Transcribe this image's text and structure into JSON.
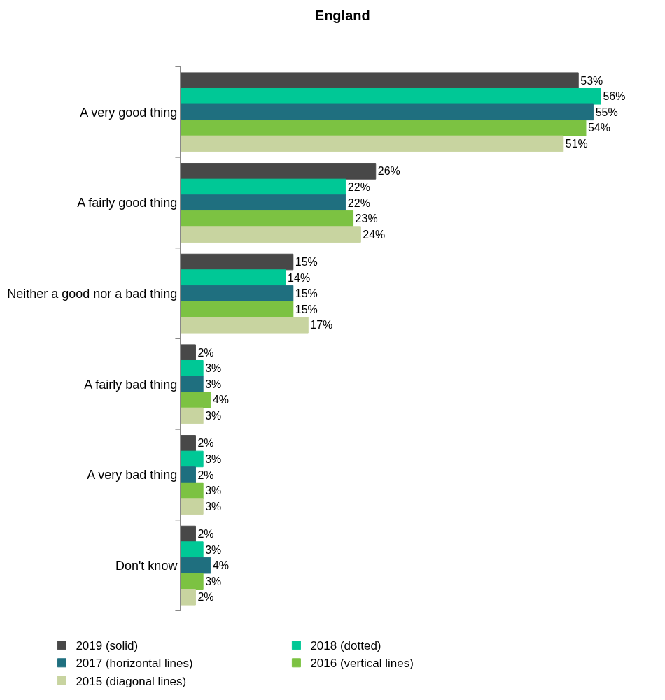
{
  "chart_data": {
    "type": "bar",
    "orientation": "horizontal",
    "title": "England",
    "categories": [
      "A very good thing",
      "A fairly good thing",
      "Neither a good nor a bad thing",
      "A fairly bad thing",
      "A very bad thing",
      "Don't know"
    ],
    "series": [
      {
        "name": "2019 (solid)",
        "color": "#484848",
        "values": [
          53,
          26,
          15,
          2,
          2,
          2
        ],
        "value_labels": [
          "53%",
          "26%",
          "15%",
          "2%",
          "2%",
          "2%"
        ]
      },
      {
        "name": "2018 (dotted)",
        "color": "#00c896",
        "values": [
          56,
          22,
          14,
          3,
          3,
          3
        ],
        "value_labels": [
          "56%",
          "22%",
          "14%",
          "3%",
          "3%",
          "3%"
        ]
      },
      {
        "name": "2017 (horizontal lines)",
        "color": "#1f6f7f",
        "values": [
          55,
          22,
          15,
          3,
          2,
          4
        ],
        "value_labels": [
          "55%",
          "22%",
          "15%",
          "3%",
          "2%",
          "4%"
        ]
      },
      {
        "name": "2016 (vertical lines)",
        "color": "#7cc242",
        "values": [
          54,
          23,
          15,
          4,
          3,
          3
        ],
        "value_labels": [
          "54%",
          "23%",
          "15%",
          "4%",
          "3%",
          "3%"
        ]
      },
      {
        "name": "2015 (diagonal lines)",
        "color": "#c8d4a0",
        "values": [
          51,
          24,
          17,
          3,
          3,
          2
        ],
        "value_labels": [
          "51%",
          "24%",
          "17%",
          "3%",
          "3%",
          "2%"
        ]
      }
    ],
    "legend": "bottom"
  }
}
